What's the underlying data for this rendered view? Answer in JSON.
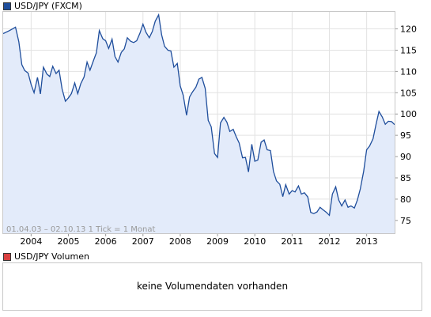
{
  "main_legend": {
    "label": "USD/JPY (FXCM)",
    "color": "#1f4e9c"
  },
  "volume_legend": {
    "label": "USD/JPY Volumen",
    "color": "#d94040"
  },
  "range_note": "01.04.03 – 02.10.13   1 Tick = 1 Monat",
  "volume_message": "keine Volumendaten vorhanden",
  "colors": {
    "line": "#1f4e9c",
    "fill": "#e3ebfa",
    "grid": "#e2e2e2",
    "axis": "#9a9a9a"
  },
  "chart_data": {
    "type": "area",
    "title": "USD/JPY (FXCM)",
    "x_ticks": [
      "2004",
      "2005",
      "2006",
      "2007",
      "2008",
      "2009",
      "2010",
      "2011",
      "2012",
      "2013"
    ],
    "y_ticks": [
      75,
      80,
      85,
      90,
      95,
      100,
      105,
      110,
      115,
      120
    ],
    "ylim": [
      72,
      124
    ],
    "xlim": [
      2003.25,
      2013.75
    ],
    "grid": true,
    "series": [
      {
        "name": "USD/JPY",
        "points": [
          [
            2003.25,
            118.9
          ],
          [
            2003.42,
            119.6
          ],
          [
            2003.58,
            120.4
          ],
          [
            2003.67,
            117.0
          ],
          [
            2003.75,
            111.6
          ],
          [
            2003.83,
            110.2
          ],
          [
            2003.92,
            109.6
          ],
          [
            2004.0,
            106.9
          ],
          [
            2004.08,
            105.0
          ],
          [
            2004.17,
            108.6
          ],
          [
            2004.25,
            104.7
          ],
          [
            2004.33,
            111.0
          ],
          [
            2004.42,
            109.4
          ],
          [
            2004.5,
            108.8
          ],
          [
            2004.58,
            111.2
          ],
          [
            2004.67,
            109.5
          ],
          [
            2004.75,
            110.3
          ],
          [
            2004.83,
            105.9
          ],
          [
            2004.92,
            103.0
          ],
          [
            2005.0,
            103.8
          ],
          [
            2005.08,
            104.8
          ],
          [
            2005.17,
            107.3
          ],
          [
            2005.25,
            104.8
          ],
          [
            2005.33,
            107.1
          ],
          [
            2005.42,
            108.7
          ],
          [
            2005.5,
            112.2
          ],
          [
            2005.58,
            110.3
          ],
          [
            2005.67,
            112.5
          ],
          [
            2005.75,
            114.4
          ],
          [
            2005.83,
            119.6
          ],
          [
            2005.92,
            117.7
          ],
          [
            2006.0,
            117.2
          ],
          [
            2006.08,
            115.4
          ],
          [
            2006.17,
            117.6
          ],
          [
            2006.25,
            113.5
          ],
          [
            2006.33,
            112.2
          ],
          [
            2006.42,
            114.5
          ],
          [
            2006.5,
            115.3
          ],
          [
            2006.58,
            117.9
          ],
          [
            2006.67,
            117.1
          ],
          [
            2006.75,
            116.8
          ],
          [
            2006.83,
            117.2
          ],
          [
            2006.92,
            119.0
          ],
          [
            2007.0,
            121.1
          ],
          [
            2007.08,
            119.2
          ],
          [
            2007.17,
            117.9
          ],
          [
            2007.25,
            119.4
          ],
          [
            2007.33,
            121.8
          ],
          [
            2007.42,
            123.3
          ],
          [
            2007.5,
            118.6
          ],
          [
            2007.58,
            115.9
          ],
          [
            2007.67,
            115.0
          ],
          [
            2007.75,
            114.8
          ],
          [
            2007.83,
            111.0
          ],
          [
            2007.92,
            111.9
          ],
          [
            2008.0,
            106.6
          ],
          [
            2008.08,
            104.4
          ],
          [
            2008.17,
            99.7
          ],
          [
            2008.25,
            104.0
          ],
          [
            2008.33,
            105.2
          ],
          [
            2008.42,
            106.3
          ],
          [
            2008.5,
            108.2
          ],
          [
            2008.58,
            108.6
          ],
          [
            2008.67,
            106.0
          ],
          [
            2008.75,
            98.5
          ],
          [
            2008.83,
            97.0
          ],
          [
            2008.92,
            90.7
          ],
          [
            2009.0,
            89.8
          ],
          [
            2009.08,
            97.9
          ],
          [
            2009.17,
            99.2
          ],
          [
            2009.25,
            98.1
          ],
          [
            2009.33,
            95.9
          ],
          [
            2009.42,
            96.4
          ],
          [
            2009.5,
            94.7
          ],
          [
            2009.58,
            93.2
          ],
          [
            2009.67,
            89.7
          ],
          [
            2009.75,
            89.8
          ],
          [
            2009.83,
            86.4
          ],
          [
            2009.92,
            92.9
          ],
          [
            2010.0,
            88.9
          ],
          [
            2010.08,
            89.2
          ],
          [
            2010.17,
            93.4
          ],
          [
            2010.25,
            93.9
          ],
          [
            2010.33,
            91.6
          ],
          [
            2010.42,
            91.4
          ],
          [
            2010.5,
            86.5
          ],
          [
            2010.58,
            84.3
          ],
          [
            2010.67,
            83.5
          ],
          [
            2010.75,
            80.6
          ],
          [
            2010.83,
            83.4
          ],
          [
            2010.92,
            81.2
          ],
          [
            2011.0,
            82.0
          ],
          [
            2011.08,
            81.7
          ],
          [
            2011.17,
            83.1
          ],
          [
            2011.25,
            81.2
          ],
          [
            2011.33,
            81.5
          ],
          [
            2011.42,
            80.5
          ],
          [
            2011.5,
            76.9
          ],
          [
            2011.58,
            76.6
          ],
          [
            2011.67,
            77.0
          ],
          [
            2011.75,
            78.1
          ],
          [
            2011.83,
            77.5
          ],
          [
            2011.92,
            76.9
          ],
          [
            2012.0,
            76.2
          ],
          [
            2012.08,
            81.2
          ],
          [
            2012.17,
            82.9
          ],
          [
            2012.25,
            79.8
          ],
          [
            2012.33,
            78.4
          ],
          [
            2012.42,
            79.8
          ],
          [
            2012.5,
            78.1
          ],
          [
            2012.58,
            78.4
          ],
          [
            2012.67,
            77.9
          ],
          [
            2012.75,
            79.8
          ],
          [
            2012.83,
            82.4
          ],
          [
            2012.92,
            86.6
          ],
          [
            2013.0,
            91.6
          ],
          [
            2013.08,
            92.5
          ],
          [
            2013.17,
            94.2
          ],
          [
            2013.25,
            97.5
          ],
          [
            2013.33,
            100.6
          ],
          [
            2013.42,
            99.3
          ],
          [
            2013.5,
            97.6
          ],
          [
            2013.58,
            98.3
          ],
          [
            2013.67,
            98.2
          ],
          [
            2013.75,
            97.5
          ]
        ]
      }
    ]
  }
}
